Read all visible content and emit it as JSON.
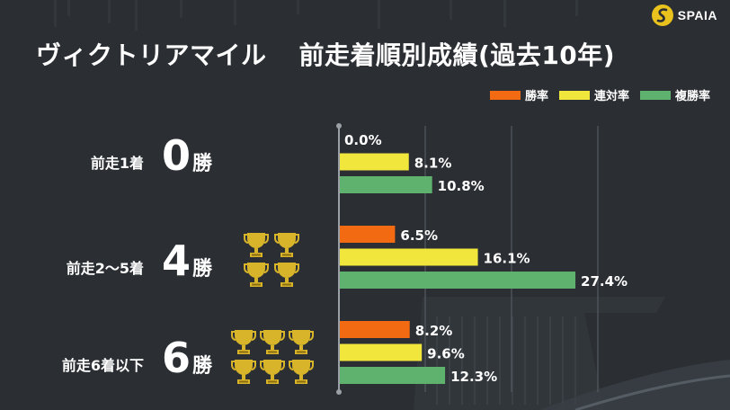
{
  "brand": {
    "name": "SPAIA"
  },
  "title": {
    "race": "ヴィクトリアマイル",
    "subject": "前走着順別成績(過去10年)"
  },
  "colors": {
    "win": "#f26a12",
    "quinella": "#f0e63c",
    "place": "#5fb26e",
    "background": "#2b2f33",
    "trophy": "#d8b42a"
  },
  "chart_data": {
    "type": "bar",
    "orientation": "horizontal",
    "categories": [
      "前走1着",
      "前走2～5着",
      "前走6着以下"
    ],
    "wins": [
      0,
      4,
      6
    ],
    "wins_unit": "勝",
    "series": [
      {
        "name": "勝率",
        "key": "win",
        "values": [
          0.0,
          6.5,
          8.2
        ]
      },
      {
        "name": "連対率",
        "key": "quinella",
        "values": [
          8.1,
          16.1,
          9.6
        ]
      },
      {
        "name": "複勝率",
        "key": "place",
        "values": [
          10.8,
          27.4,
          12.3
        ]
      }
    ],
    "value_suffix": "%",
    "xlim": [
      0,
      30
    ],
    "grid": true,
    "legend": "top-right"
  }
}
